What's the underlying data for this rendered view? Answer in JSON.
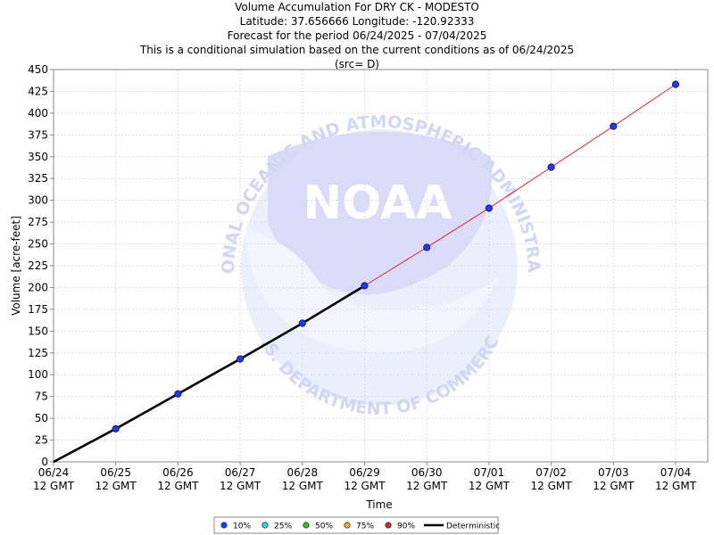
{
  "title_lines": [
    "Volume Accumulation For DRY CK - MODESTO",
    "Latitude: 37.656666 Longitude: -120.92333",
    "Forecast for the period 06/24/2025 - 07/04/2025",
    "This is a conditional simulation based on the current conditions as of 06/24/2025",
    "(src= D)"
  ],
  "watermark": {
    "logo_text": "NOAA",
    "arc_top": "NATIONAL OCEANIC AND ATMOSPHERIC ADMINISTRATION",
    "arc_bottom": "U.S. DEPARTMENT OF COMMERCE"
  },
  "chart_data": {
    "type": "line",
    "xlabel": "Time",
    "ylabel": "Volume [acre-feet]",
    "ylim": [
      0,
      450
    ],
    "yticks": [
      0,
      25,
      50,
      75,
      100,
      125,
      150,
      175,
      200,
      225,
      250,
      275,
      300,
      325,
      350,
      375,
      400,
      425,
      450
    ],
    "xticks": [
      {
        "date": "06/24",
        "time": "12 GMT"
      },
      {
        "date": "06/25",
        "time": "12 GMT"
      },
      {
        "date": "06/26",
        "time": "12 GMT"
      },
      {
        "date": "06/27",
        "time": "12 GMT"
      },
      {
        "date": "06/28",
        "time": "12 GMT"
      },
      {
        "date": "06/29",
        "time": "12 GMT"
      },
      {
        "date": "06/30",
        "time": "12 GMT"
      },
      {
        "date": "07/01",
        "time": "12 GMT"
      },
      {
        "date": "07/02",
        "time": "12 GMT"
      },
      {
        "date": "07/03",
        "time": "12 GMT"
      },
      {
        "date": "07/04",
        "time": "12 GMT"
      }
    ],
    "grid": true,
    "legend_position": "bottom-center",
    "legend": [
      {
        "label": "10%",
        "color": "#1a3cff",
        "kind": "dot"
      },
      {
        "label": "25%",
        "color": "#22e0e0",
        "kind": "dot"
      },
      {
        "label": "50%",
        "color": "#22cc22",
        "kind": "dot"
      },
      {
        "label": "75%",
        "color": "#f0b020",
        "kind": "dot"
      },
      {
        "label": "90%",
        "color": "#e02020",
        "kind": "dot"
      },
      {
        "label": "Deterministic",
        "color": "#000000",
        "kind": "line"
      }
    ],
    "series": [
      {
        "name": "Deterministic",
        "color": "#000000",
        "x": [
          "06/24",
          "06/25",
          "06/26",
          "06/27",
          "06/28",
          "06/29"
        ],
        "values": [
          0,
          38,
          78,
          118,
          159,
          202
        ]
      },
      {
        "name": "90%",
        "color": "#e02020",
        "x": [
          "06/29",
          "06/30",
          "07/01",
          "07/02",
          "07/03",
          "07/04"
        ],
        "values": [
          202,
          246,
          291,
          338,
          385,
          433
        ]
      },
      {
        "name": "10%",
        "color": "#1a3cff",
        "x": [
          "06/25",
          "06/26",
          "06/27",
          "06/28",
          "06/29",
          "06/30",
          "07/01",
          "07/02",
          "07/03",
          "07/04"
        ],
        "values": [
          38,
          78,
          118,
          159,
          202,
          246,
          291,
          338,
          385,
          433
        ]
      }
    ]
  }
}
